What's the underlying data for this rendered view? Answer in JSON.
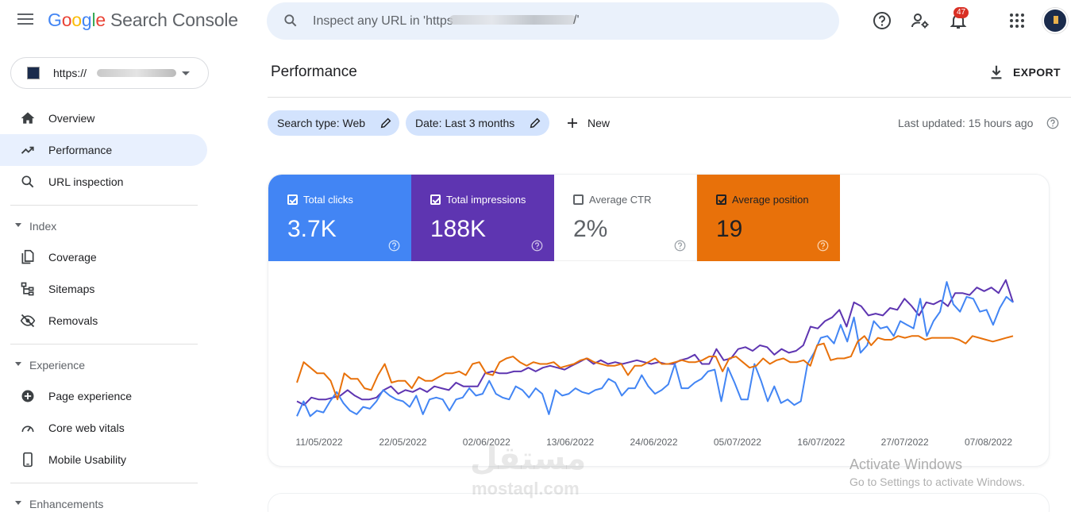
{
  "header": {
    "logo": {
      "g": "G",
      "o1": "o",
      "o2": "o",
      "g2": "g",
      "l": "l",
      "e": "e",
      "product": "Search Console"
    },
    "search_placeholder": "Inspect any URL in 'https",
    "search_tail": "/'",
    "notification_count": "47"
  },
  "property": {
    "url": "https://"
  },
  "sidebar": {
    "overview": "Overview",
    "performance": "Performance",
    "url_inspection": "URL inspection",
    "index_section": "Index",
    "coverage": "Coverage",
    "sitemaps": "Sitemaps",
    "removals": "Removals",
    "experience_section": "Experience",
    "page_experience": "Page experience",
    "core_web_vitals": "Core web vitals",
    "mobile_usability": "Mobile Usability",
    "enhancements_section": "Enhancements"
  },
  "main": {
    "title": "Performance",
    "export_label": "EXPORT",
    "filters": {
      "search_type": "Search type: Web",
      "date": "Date: Last 3 months",
      "new": "New"
    },
    "last_updated": "Last updated: 15 hours ago"
  },
  "metrics": {
    "clicks": {
      "label": "Total clicks",
      "value": "3.7K",
      "checked": true
    },
    "impressions": {
      "label": "Total impressions",
      "value": "188K",
      "checked": true
    },
    "ctr": {
      "label": "Average CTR",
      "value": "2%",
      "checked": false
    },
    "position": {
      "label": "Average position",
      "value": "19",
      "checked": true
    }
  },
  "chart_data": {
    "type": "line",
    "x_tick_labels": [
      "11/05/2022",
      "22/05/2022",
      "02/06/2022",
      "13/06/2022",
      "24/06/2022",
      "05/07/2022",
      "16/07/2022",
      "27/07/2022",
      "07/08/2022"
    ],
    "x_start": "2022-05-08",
    "x_end": "2022-08-10",
    "yaxis_visible": false,
    "grid": false,
    "series": [
      {
        "name": "Total impressions",
        "color": "#5e35b1",
        "values": [
          10,
          8,
          12,
          11,
          11,
          12,
          13,
          16,
          13,
          11,
          11,
          12,
          16,
          18,
          14,
          16,
          15,
          17,
          15,
          18,
          17,
          16,
          20,
          18,
          18,
          18,
          25,
          26,
          25,
          25,
          26,
          26,
          28,
          26,
          28,
          29,
          28,
          27,
          29,
          31,
          33,
          30,
          32,
          30,
          31,
          30,
          31,
          32,
          31,
          30,
          31,
          30,
          30,
          32,
          33,
          35,
          30,
          30,
          38,
          32,
          33,
          38,
          39,
          37,
          40,
          39,
          35,
          38,
          36,
          37,
          40,
          50,
          49,
          53,
          55,
          59,
          50,
          63,
          61,
          56,
          57,
          56,
          60,
          59,
          65,
          61,
          56,
          63,
          62,
          64,
          61,
          68,
          68,
          67,
          71,
          69,
          71,
          68,
          75,
          63
        ]
      },
      {
        "name": "Total clicks",
        "color": "#4285f4",
        "values": [
          2,
          10,
          2,
          5,
          4,
          10,
          15,
          9,
          5,
          3,
          7,
          6,
          10,
          16,
          13,
          11,
          10,
          7,
          13,
          3,
          11,
          12,
          11,
          5,
          11,
          12,
          17,
          13,
          14,
          21,
          14,
          12,
          11,
          18,
          16,
          12,
          17,
          14,
          3,
          16,
          13,
          14,
          17,
          15,
          14,
          16,
          17,
          22,
          20,
          13,
          17,
          17,
          24,
          18,
          14,
          16,
          19,
          30,
          17,
          17,
          20,
          22,
          26,
          27,
          10,
          28,
          20,
          11,
          11,
          30,
          21,
          10,
          18,
          9,
          11,
          8,
          10,
          30,
          36,
          44,
          45,
          41,
          51,
          42,
          55,
          36,
          40,
          53,
          49,
          50,
          45,
          53,
          51,
          49,
          65,
          45,
          53,
          58,
          74,
          62,
          58,
          66,
          65,
          58,
          59,
          51,
          60,
          66,
          63
        ]
      },
      {
        "name": "Average position",
        "color": "#e8710a",
        "values": [
          20,
          31,
          28,
          25,
          25,
          21,
          11,
          25,
          22,
          22,
          17,
          16,
          24,
          30,
          20,
          21,
          21,
          17,
          23,
          21,
          21,
          23,
          25,
          25,
          26,
          24,
          30,
          31,
          25,
          24,
          31,
          33,
          34,
          31,
          29,
          31,
          30,
          30,
          31,
          28,
          29,
          30,
          32,
          33,
          31,
          30,
          29,
          29,
          30,
          24,
          29,
          29,
          31,
          33,
          30,
          30,
          31,
          32,
          31,
          31,
          32,
          34,
          34,
          26,
          33,
          34,
          31,
          28,
          29,
          33,
          30,
          32,
          33,
          31,
          31,
          32,
          29,
          40,
          41,
          32,
          33,
          33,
          34,
          42,
          45,
          40,
          44,
          43,
          43,
          45,
          44,
          45,
          45,
          43,
          44,
          44,
          44,
          44,
          43,
          41,
          45,
          44,
          43,
          42,
          43,
          44,
          45
        ]
      }
    ]
  }
}
